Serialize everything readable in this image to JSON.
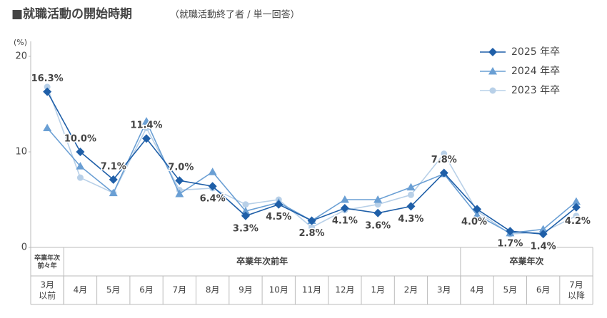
{
  "chart_data": {
    "type": "line",
    "title": "■就職活動の開始時期",
    "subtitle": "（就職活動終了者 / 単一回答）",
    "y_unit": "(%)",
    "categories": [
      "3月\n以前",
      "4月",
      "5月",
      "6月",
      "7月",
      "8月",
      "9月",
      "10月",
      "11月",
      "12月",
      "1月",
      "2月",
      "3月",
      "4月",
      "5月",
      "6月",
      "7月\n以降"
    ],
    "category_groups": [
      "卒業年次\n前々年",
      "卒業年次前年",
      "卒業年次"
    ],
    "series": [
      {
        "name": "2025 年卒",
        "color": "#1f5fa8",
        "marker": "diamond",
        "values": [
          16.3,
          10.0,
          7.1,
          11.4,
          7.0,
          6.4,
          3.3,
          4.5,
          2.8,
          4.1,
          3.6,
          4.3,
          7.8,
          4.0,
          1.7,
          1.4,
          4.2
        ],
        "value_labels": [
          "16.3%",
          "10.0%",
          "7.1%",
          "11.4%",
          "7.0%",
          "6.4%",
          "3.3%",
          "4.5%",
          "2.8%",
          "4.1%",
          "3.6%",
          "4.3%",
          "7.8%",
          "4.0%",
          "1.7%",
          "1.4%",
          "4.2%"
        ]
      },
      {
        "name": "2024 年卒",
        "color": "#6a9fd4",
        "marker": "triangle",
        "values": [
          12.5,
          8.5,
          5.7,
          13.2,
          5.6,
          7.9,
          3.8,
          4.7,
          2.8,
          5.0,
          5.0,
          6.3,
          7.7,
          3.4,
          1.5,
          1.9,
          4.8
        ]
      },
      {
        "name": "2023 年卒",
        "color": "#b8d0e8",
        "marker": "circle",
        "values": [
          16.8,
          7.3,
          5.7,
          12.5,
          6.0,
          6.2,
          4.5,
          5.0,
          2.1,
          3.9,
          4.5,
          5.5,
          9.8,
          3.8,
          1.4,
          1.6,
          3.3
        ]
      }
    ],
    "ylim": [
      0,
      20
    ],
    "yticks": [
      0,
      10,
      20
    ],
    "grid": false
  }
}
